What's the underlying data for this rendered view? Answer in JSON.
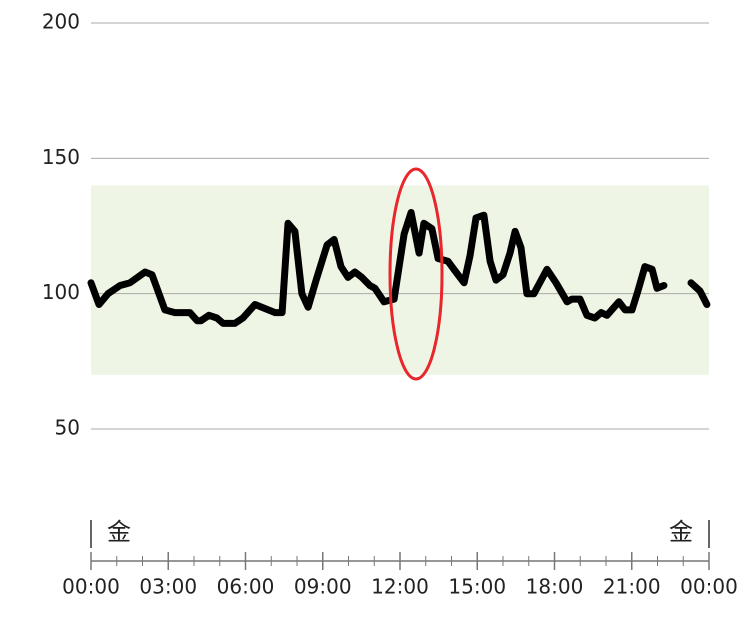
{
  "chart_data": {
    "type": "line",
    "target_range": [
      70,
      140
    ],
    "target_color": "#eef5e4",
    "ylim": [
      50,
      200
    ],
    "yticks": [
      50,
      100,
      150,
      200
    ],
    "grid": true,
    "xlim": [
      0,
      24
    ],
    "xticks": [
      {
        "value": 0,
        "label": "00:00"
      },
      {
        "value": 3,
        "label": "03:00"
      },
      {
        "value": 6,
        "label": "06:00"
      },
      {
        "value": 9,
        "label": "09:00"
      },
      {
        "value": 12,
        "label": "12:00"
      },
      {
        "value": 15,
        "label": "15:00"
      },
      {
        "value": 18,
        "label": "18:00"
      },
      {
        "value": 21,
        "label": "21:00"
      },
      {
        "value": 24,
        "label": "00:00"
      }
    ],
    "xminor": [
      1,
      2,
      4,
      5,
      7,
      8,
      10,
      11,
      13,
      14,
      16,
      17,
      19,
      20,
      22,
      23
    ],
    "day_labels": [
      {
        "value": 0,
        "label": "金"
      },
      {
        "value": 24,
        "label": "金"
      }
    ],
    "series": [
      {
        "color": "#000000",
        "x": [
          0,
          0.31,
          0.66,
          1.13,
          1.51,
          2.1,
          2.37,
          2.87,
          3.26,
          3.65,
          3.84,
          4.12,
          4.27,
          4.58,
          4.89,
          5.13,
          5.59,
          5.9,
          6.37,
          7.15,
          7.42,
          7.65,
          7.92,
          8.19,
          8.43,
          8.74,
          9.17,
          9.44,
          9.71,
          9.98,
          10.25,
          10.52,
          10.83,
          11.03,
          11.38,
          11.77,
          12.16,
          12.43,
          12.74,
          12.93,
          13.24,
          13.48,
          13.86,
          14.17,
          14.49,
          14.72,
          14.95,
          15.26,
          15.5,
          15.73,
          16.0,
          16.27,
          16.47,
          16.7,
          16.93,
          17.2,
          17.71,
          18.06,
          18.49,
          18.68,
          18.99,
          19.26,
          19.57,
          19.81,
          20.04,
          20.5,
          20.74,
          21.01,
          21.24,
          21.51,
          21.79,
          21.98,
          22.25,
          22.8,
          23.3,
          23.65,
          23.92
        ],
        "values": [
          104,
          96,
          100,
          103,
          104,
          108,
          107,
          94,
          93,
          93,
          93,
          90,
          90,
          92,
          91,
          89,
          89,
          91,
          96,
          93,
          93,
          126,
          123,
          100,
          95,
          105,
          118,
          120,
          110,
          106,
          108,
          106,
          103,
          102,
          97,
          98,
          122,
          130,
          115,
          126,
          124,
          113,
          112,
          108,
          104,
          114,
          128,
          129,
          112,
          105,
          107,
          115,
          123,
          117,
          100,
          100,
          109,
          104,
          97,
          98,
          98,
          92,
          91,
          93,
          92,
          97,
          94,
          94,
          101,
          110,
          109,
          102,
          103,
          null,
          104,
          101,
          96
        ]
      }
    ]
  }
}
